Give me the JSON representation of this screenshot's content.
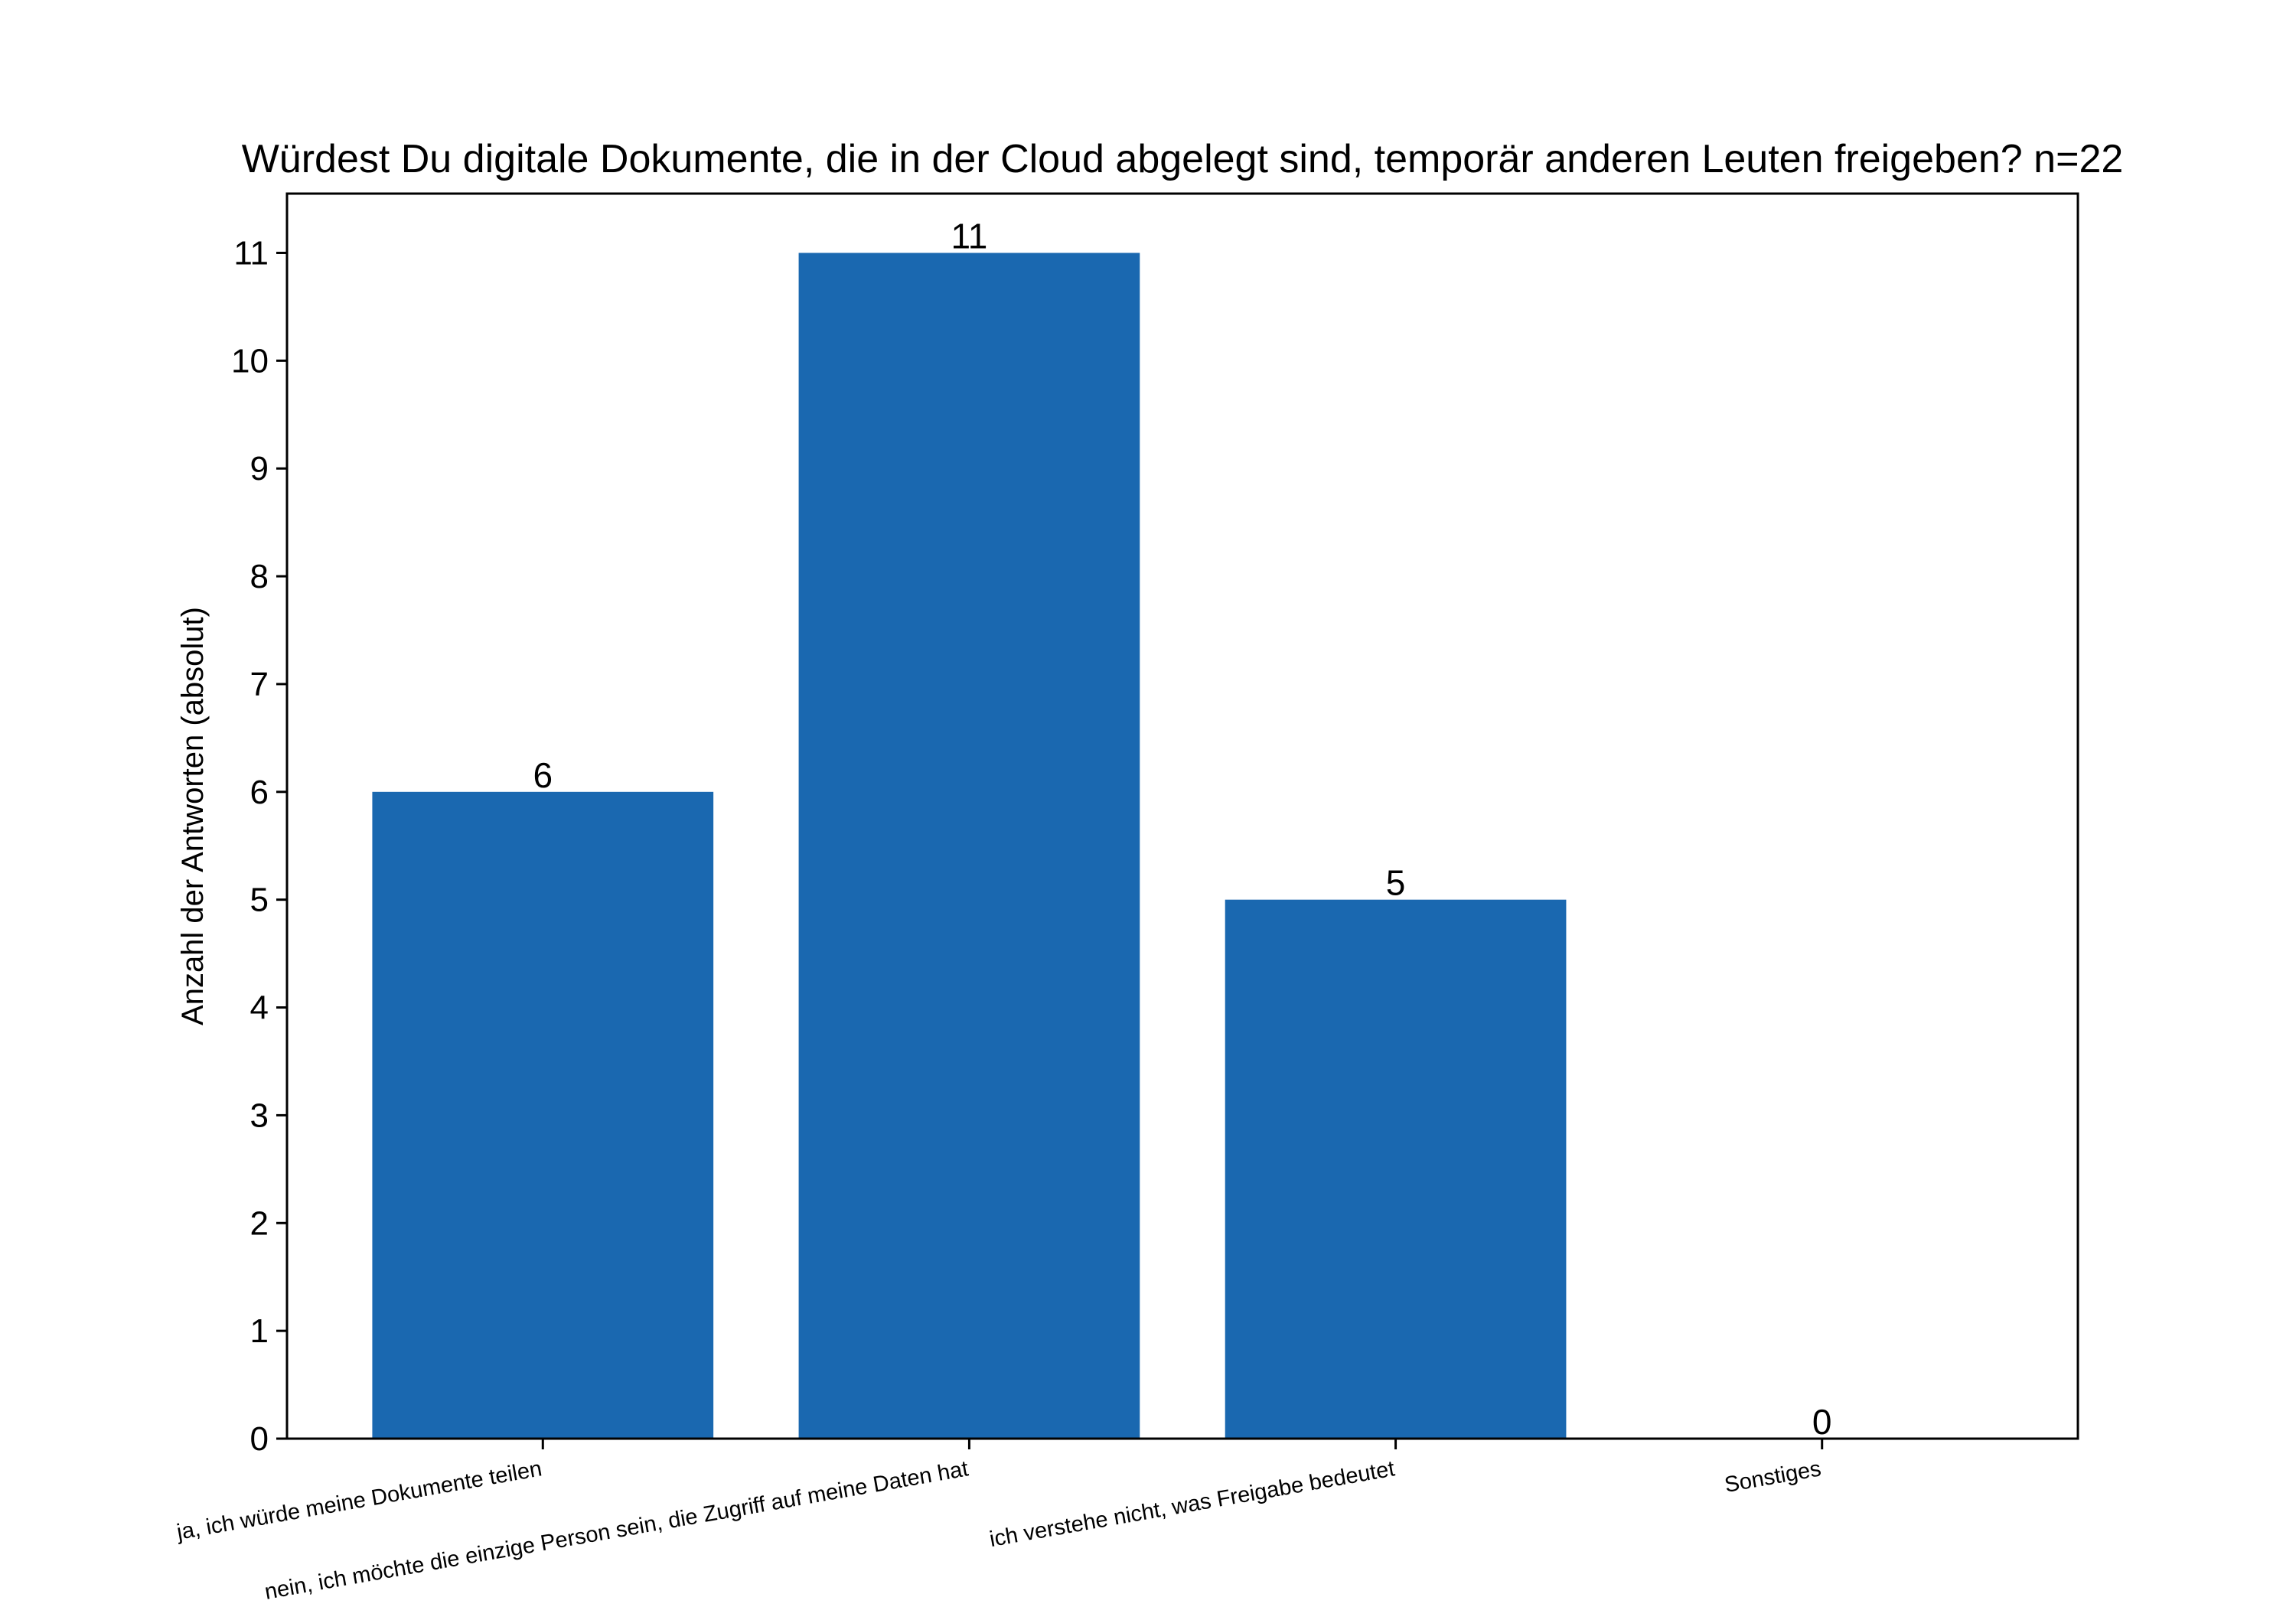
{
  "chart_data": {
    "type": "bar",
    "title": "Würdest Du digitale Dokumente, die in der Cloud abgelegt sind, temporär anderen Leuten freigeben? n=22",
    "xlabel": "",
    "ylabel": "Anzahl der Antworten (absolut)",
    "categories": [
      "ja, ich würde meine Dokumente teilen",
      "nein, ich möchte die einzige Person sein, die Zugriff auf meine Daten hat",
      "ich verstehe nicht, was Freigabe bedeutet",
      "Sonstiges"
    ],
    "values": [
      6,
      11,
      5,
      0
    ],
    "data_labels": [
      "6",
      "11",
      "5",
      "0"
    ],
    "ylim": [
      0,
      11.55
    ],
    "yticks": [
      0,
      1,
      2,
      3,
      4,
      5,
      6,
      7,
      8,
      9,
      10,
      11
    ],
    "ytick_labels": [
      "0",
      "1",
      "2",
      "3",
      "4",
      "5",
      "6",
      "7",
      "8",
      "9",
      "10",
      "11"
    ],
    "grid": false,
    "legend": "none",
    "bar_color": "#1a68b0",
    "axis_color": "#000000"
  }
}
